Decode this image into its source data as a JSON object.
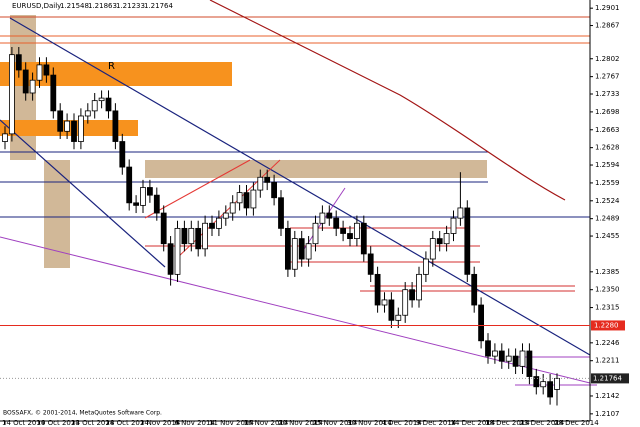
{
  "chart_data": {
    "type": "candlestick",
    "title": "EURUSD,Daily",
    "footer": "BOSSAFX, © 2001-2014, MetaQuotes Software Corp.",
    "annotation": "R",
    "up_color": "#ffffff",
    "down_color": "#000000",
    "categories": [
      "14 Oct 2014",
      null,
      null,
      null,
      null,
      "19 Oct 2014",
      null,
      null,
      null,
      null,
      "23 Oct 2014",
      null,
      null,
      null,
      null,
      "28 Oct 2014",
      null,
      null,
      null,
      null,
      "2 Nov 2014",
      null,
      null,
      null,
      null,
      "6 Nov 2014",
      null,
      null,
      null,
      null,
      "11 Nov 2014",
      null,
      null,
      null,
      null,
      "16 Nov 2014",
      null,
      null,
      null,
      null,
      "20 Nov 2014",
      null,
      null,
      null,
      null,
      "25 Nov 2014",
      null,
      null,
      null,
      null,
      "30 Nov 2014",
      null,
      null,
      null,
      null,
      "4 Dec 2014",
      null,
      null,
      null,
      null,
      "9 Dec 2014",
      null,
      null,
      null,
      null,
      "14 Dec 2014",
      null,
      null,
      null,
      null,
      "18 Dec 2014",
      null,
      null,
      null,
      null,
      "23 Dec 2014",
      null,
      null,
      null,
      null,
      "28 Dec 2014"
    ],
    "open": [
      1.264,
      1.2655,
      1.281,
      1.278,
      1.2735,
      1.276,
      1.279,
      1.277,
      1.27,
      1.266,
      1.268,
      1.264,
      1.269,
      1.27,
      1.272,
      1.2725,
      1.27,
      1.264,
      1.259,
      1.252,
      1.2515,
      1.255,
      1.2535,
      1.25,
      1.244,
      1.238,
      1.247,
      1.244,
      1.247,
      1.243,
      1.248,
      1.247,
      1.249,
      1.25,
      1.252,
      1.254,
      1.251,
      1.2545,
      1.257,
      1.256,
      1.253,
      1.247,
      1.239,
      1.245,
      1.241,
      1.244,
      1.248,
      1.25,
      1.249,
      1.247,
      1.246,
      1.245,
      1.248,
      1.242,
      1.238,
      1.232,
      1.233,
      1.229,
      1.23,
      1.235,
      1.233,
      1.238,
      1.241,
      1.245,
      1.244,
      1.246,
      1.249,
      1.251,
      1.238,
      1.232,
      1.225,
      1.222,
      1.223,
      1.221,
      1.222,
      1.22,
      1.223,
      1.218,
      1.216,
      1.217,
      1.21548
    ],
    "high": [
      1.267,
      1.2825,
      1.2825,
      1.2795,
      1.2775,
      1.2805,
      1.2805,
      1.2785,
      1.2715,
      1.2695,
      1.2695,
      1.2705,
      1.2715,
      1.2735,
      1.274,
      1.274,
      1.2715,
      1.2655,
      1.2605,
      1.2535,
      1.2565,
      1.2565,
      1.255,
      1.2515,
      1.2455,
      1.2485,
      1.2485,
      1.2485,
      1.2485,
      1.2495,
      1.2495,
      1.2505,
      1.2515,
      1.2535,
      1.2555,
      1.2555,
      1.256,
      1.2585,
      1.2585,
      1.2575,
      1.2545,
      1.2485,
      1.2465,
      1.2465,
      1.2455,
      1.2495,
      1.2515,
      1.2515,
      1.2505,
      1.2485,
      1.2475,
      1.2495,
      1.2495,
      1.2435,
      1.2395,
      1.2345,
      1.2345,
      1.2315,
      1.2365,
      1.2365,
      1.2395,
      1.2425,
      1.2465,
      1.2465,
      1.2475,
      1.2505,
      1.258,
      1.2525,
      1.2395,
      1.2335,
      1.2265,
      1.2245,
      1.2245,
      1.2235,
      1.2235,
      1.2245,
      1.2245,
      1.2195,
      1.2185,
      1.2185,
      1.21863
    ],
    "low": [
      1.2625,
      1.264,
      1.2765,
      1.272,
      1.272,
      1.2745,
      1.2755,
      1.2685,
      1.2645,
      1.2645,
      1.2625,
      1.2625,
      1.2675,
      1.2685,
      1.2705,
      1.2685,
      1.2625,
      1.2575,
      1.2505,
      1.25,
      1.25,
      1.252,
      1.2485,
      1.2425,
      1.2358,
      1.2365,
      1.2425,
      1.2425,
      1.2415,
      1.2415,
      1.2455,
      1.2455,
      1.2475,
      1.2485,
      1.2505,
      1.2495,
      1.2495,
      1.253,
      1.2545,
      1.2515,
      1.2455,
      1.2375,
      1.2375,
      1.2395,
      1.2395,
      1.2425,
      1.2465,
      1.2475,
      1.2455,
      1.2445,
      1.2435,
      1.2435,
      1.2405,
      1.2365,
      1.2305,
      1.2305,
      1.2275,
      1.2275,
      1.2285,
      1.2315,
      1.2315,
      1.2365,
      1.2395,
      1.2425,
      1.2425,
      1.2445,
      1.2475,
      1.2365,
      1.2305,
      1.2235,
      1.2205,
      1.2205,
      1.2195,
      1.2195,
      1.2185,
      1.2185,
      1.2165,
      1.2145,
      1.2145,
      1.2125,
      1.21233
    ],
    "close": [
      1.2655,
      1.281,
      1.278,
      1.2735,
      1.276,
      1.279,
      1.277,
      1.27,
      1.266,
      1.268,
      1.264,
      1.269,
      1.27,
      1.272,
      1.2725,
      1.27,
      1.264,
      1.259,
      1.252,
      1.2515,
      1.255,
      1.2535,
      1.25,
      1.244,
      1.238,
      1.247,
      1.244,
      1.247,
      1.243,
      1.248,
      1.247,
      1.249,
      1.25,
      1.252,
      1.254,
      1.251,
      1.2545,
      1.257,
      1.256,
      1.253,
      1.247,
      1.239,
      1.245,
      1.241,
      1.244,
      1.248,
      1.25,
      1.249,
      1.247,
      1.246,
      1.245,
      1.248,
      1.242,
      1.238,
      1.232,
      1.233,
      1.229,
      1.23,
      1.235,
      1.233,
      1.238,
      1.241,
      1.245,
      1.244,
      1.246,
      1.249,
      1.251,
      1.238,
      1.232,
      1.225,
      1.222,
      1.223,
      1.221,
      1.222,
      1.22,
      1.223,
      1.218,
      1.216,
      1.217,
      1.214,
      1.21764
    ],
    "ylim": [
      1.2093,
      1.2917
    ],
    "yticks": [
      1.2901,
      1.2867,
      1.2802,
      1.2767,
      1.2733,
      1.2698,
      1.2663,
      1.2628,
      1.2594,
      1.2559,
      1.2524,
      1.2489,
      1.2455,
      1.2385,
      {
        "value": 1.235,
        "label": "1.2350"
      },
      1.2315,
      1.2246,
      1.2211,
      1.2142,
      1.2107
    ],
    "price_lines": [
      {
        "value": 1.228,
        "label": "1.2280",
        "color": "#e52b1f"
      }
    ]
  }
}
